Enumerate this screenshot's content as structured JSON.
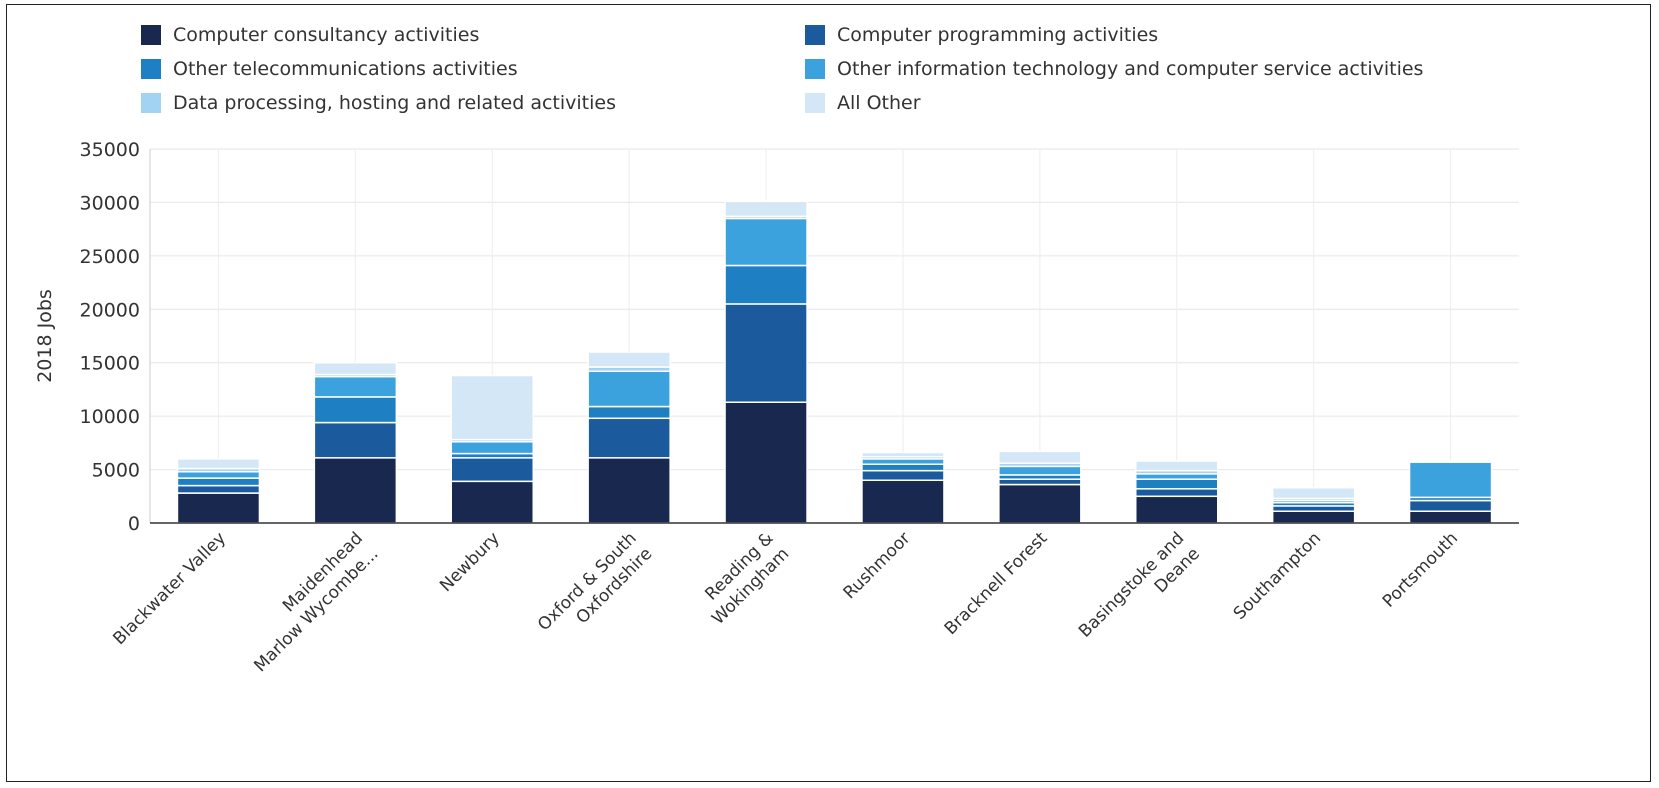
{
  "chart_data": {
    "type": "bar",
    "stacked": true,
    "title": "",
    "xlabel": "",
    "ylabel": "2018 Jobs",
    "ylim": [
      0,
      35000
    ],
    "yticks": [
      0,
      5000,
      10000,
      15000,
      20000,
      25000,
      30000,
      35000
    ],
    "grid": true,
    "legend_position": "top",
    "categories": [
      [
        "Blackwater Valley"
      ],
      [
        "Maidenhead",
        "Marlow Wycombe..."
      ],
      [
        "Newbury"
      ],
      [
        "Oxford & South",
        "Oxfordshire"
      ],
      [
        "Reading &",
        "Wokingham"
      ],
      [
        "Rushmoor"
      ],
      [
        "Bracknell Forest"
      ],
      [
        "Basingstoke and",
        "Deane"
      ],
      [
        "Southampton"
      ],
      [
        "Portsmouth"
      ]
    ],
    "series": [
      {
        "name": "Computer consultancy activities",
        "color": "#18284f",
        "values": [
          2800,
          6100,
          3900,
          6100,
          11300,
          4000,
          3600,
          2500,
          1100,
          1100
        ]
      },
      {
        "name": "Computer programming activities",
        "color": "#1b5a9c",
        "values": [
          700,
          3300,
          2200,
          3700,
          9200,
          900,
          500,
          700,
          500,
          1000
        ]
      },
      {
        "name": "Other telecommunications activities",
        "color": "#1e80c3",
        "values": [
          700,
          2400,
          400,
          1100,
          3600,
          600,
          400,
          900,
          300,
          300
        ]
      },
      {
        "name": "Other information technology and computer service activities",
        "color": "#3ba2dd",
        "values": [
          600,
          1900,
          1100,
          3300,
          4400,
          500,
          800,
          500,
          200,
          3300
        ]
      },
      {
        "name": "Data processing, hosting and related activities",
        "color": "#a3d3f3",
        "values": [
          300,
          200,
          200,
          400,
          200,
          200,
          300,
          300,
          200,
          0
        ]
      },
      {
        "name": "All Other",
        "color": "#d3e7f7",
        "values": [
          900,
          1100,
          6000,
          1400,
          1400,
          400,
          1100,
          900,
          1000,
          100
        ]
      }
    ]
  }
}
